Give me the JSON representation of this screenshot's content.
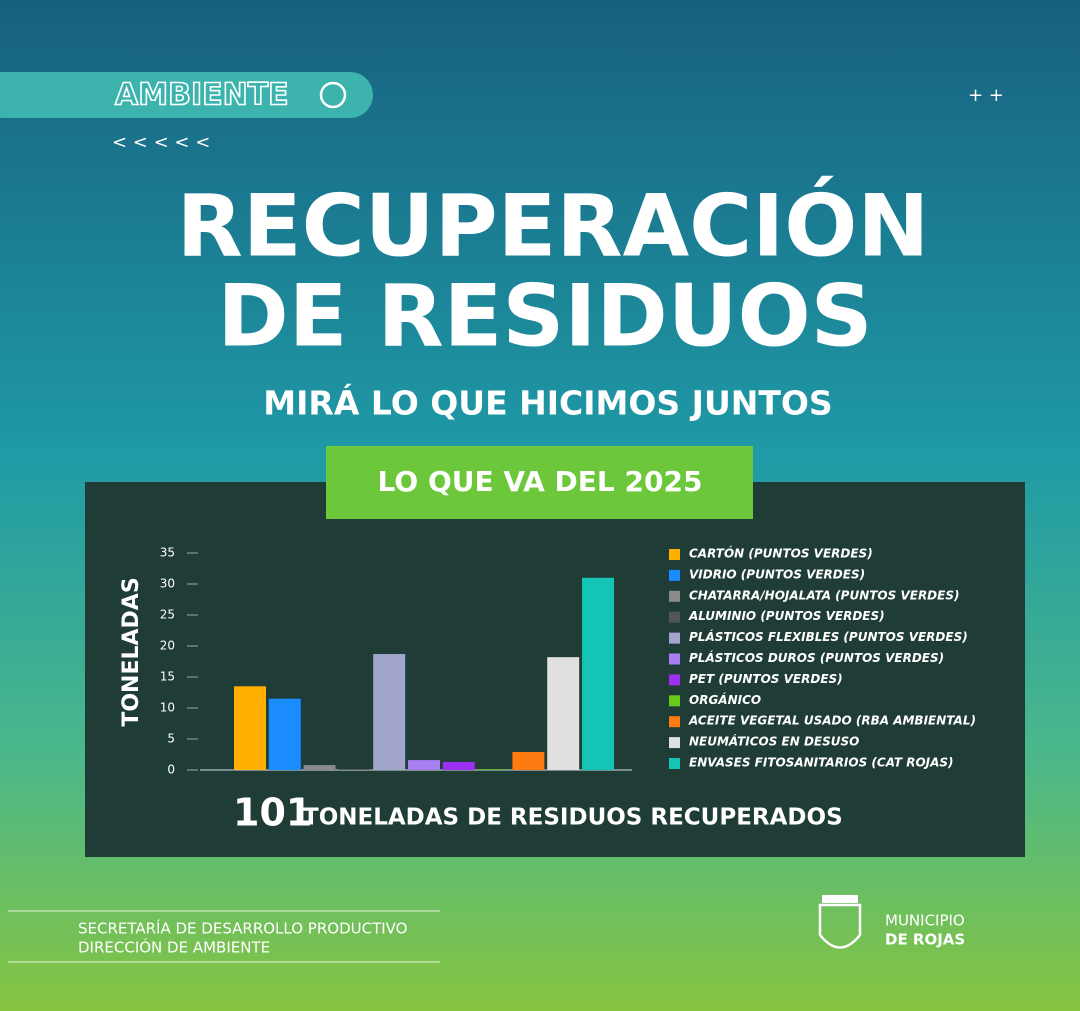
{
  "header": {
    "section": "AMBIENTE",
    "arrows": "< < < < <",
    "plus": "+ +",
    "title_line1": "RECUPERACIÓN",
    "title_line2": "DE RESIDUOS",
    "subtitle": "MIRÁ LO QUE HICIMOS JUNTOS",
    "badge": "LO QUE VA DEL 2025"
  },
  "chart_data": {
    "type": "bar",
    "y_label": "TONELADAS",
    "categories": [
      "CARTÓN (PUNTOS VERDES)",
      "VIDRIO (PUNTOS VERDES)",
      "CHATARRA/HOJALATA (PUNTOS VERDES)",
      "ALUMINIO (PUNTOS VERDES)",
      "PLÁSTICOS FLEXIBLES (PUNTOS VERDES)",
      "PLÁSTICOS DUROS (PUNTOS VERDES)",
      "PET (PUNTOS VERDES)",
      "ORGÁNICO",
      "ACEITE VEGETAL USADO (RBA AMBIENTAL)",
      "NEUMÁTICOS EN DESUSO",
      "ENVASES FITOSANITARIOS (CAT ROJAS)"
    ],
    "values": [
      13.5,
      11.5,
      0.8,
      0.1,
      18.7,
      1.6,
      1.3,
      0.1,
      2.9,
      18.2,
      31
    ],
    "colors": [
      "#ffb000",
      "#1a8cff",
      "#8a8a8a",
      "#555555",
      "#a3a6cc",
      "#a77ff0",
      "#9b30f0",
      "#66cc1a",
      "#ff7a10",
      "#e0e0e0",
      "#14c4b4"
    ],
    "ylim": [
      0,
      35
    ],
    "yticks": [
      0,
      5,
      10,
      15,
      20,
      25,
      30,
      35
    ],
    "legend": "right",
    "total": "101",
    "total_label": "TONELADAS DE RESIDUOS RECUPERADOS"
  },
  "footer": {
    "line1": "SECRETARÍA DE DESARROLLO PRODUCTIVO",
    "line2": "DIRECCIÓN DE AMBIENTE",
    "org1": "MUNICIPIO",
    "org2": "DE ROJAS"
  }
}
